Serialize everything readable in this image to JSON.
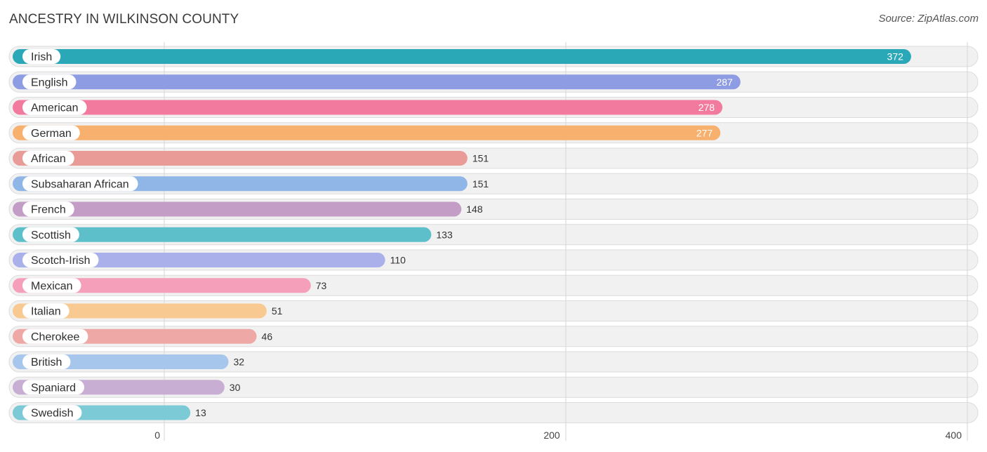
{
  "chart_data": {
    "type": "bar",
    "orientation": "horizontal",
    "title": "ANCESTRY IN WILKINSON COUNTY",
    "source": "Source: ZipAtlas.com",
    "categories": [
      "Irish",
      "English",
      "American",
      "German",
      "African",
      "Subsaharan African",
      "French",
      "Scottish",
      "Scotch-Irish",
      "Mexican",
      "Italian",
      "Cherokee",
      "British",
      "Spaniard",
      "Swedish"
    ],
    "values": [
      372,
      287,
      278,
      277,
      151,
      151,
      148,
      133,
      110,
      73,
      51,
      46,
      32,
      30,
      13
    ],
    "colors": [
      "#2aa8b8",
      "#8e9de3",
      "#f27a9f",
      "#f7b06e",
      "#e99c97",
      "#8fb6e6",
      "#c39dc6",
      "#5dbfca",
      "#a9b0ea",
      "#f59fbb",
      "#f9c992",
      "#eea9a6",
      "#a7c6ec",
      "#c9aed3",
      "#7ccad6"
    ],
    "xlim": [
      0,
      400
    ],
    "ticks": [
      0,
      200,
      400
    ],
    "tick_labels": [
      "0",
      "200",
      "400"
    ],
    "xlabel": "",
    "ylabel": "",
    "grid": true
  }
}
